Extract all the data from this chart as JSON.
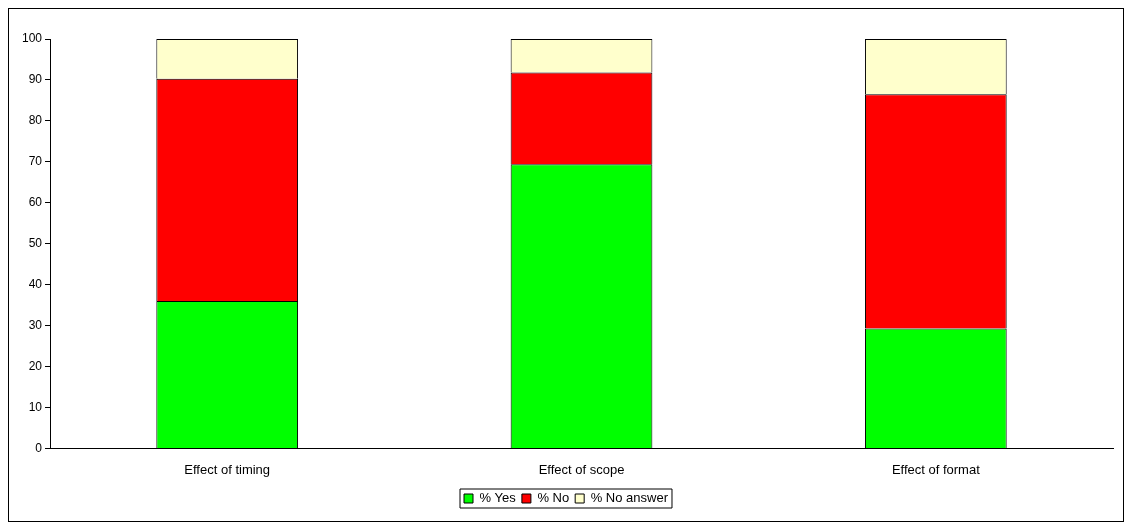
{
  "chart_data": {
    "type": "bar",
    "stacked": true,
    "categories": [
      "Effect of timing",
      "Effect of scope",
      "Effect of format"
    ],
    "series": [
      {
        "name": "% Yes",
        "color": "#00ff00",
        "values": [
          36,
          69.4,
          29.3
        ]
      },
      {
        "name": "% No",
        "color": "#ff0000",
        "values": [
          54.3,
          22.4,
          57.2
        ]
      },
      {
        "name": "% No answer",
        "color": "#ffffcc",
        "values": [
          9.7,
          8.2,
          13.5
        ]
      }
    ],
    "ylim": [
      0,
      100
    ],
    "yticks": [
      0,
      10,
      20,
      30,
      40,
      50,
      60,
      70,
      80,
      90,
      100
    ],
    "grid": false,
    "legend": "bottom"
  }
}
